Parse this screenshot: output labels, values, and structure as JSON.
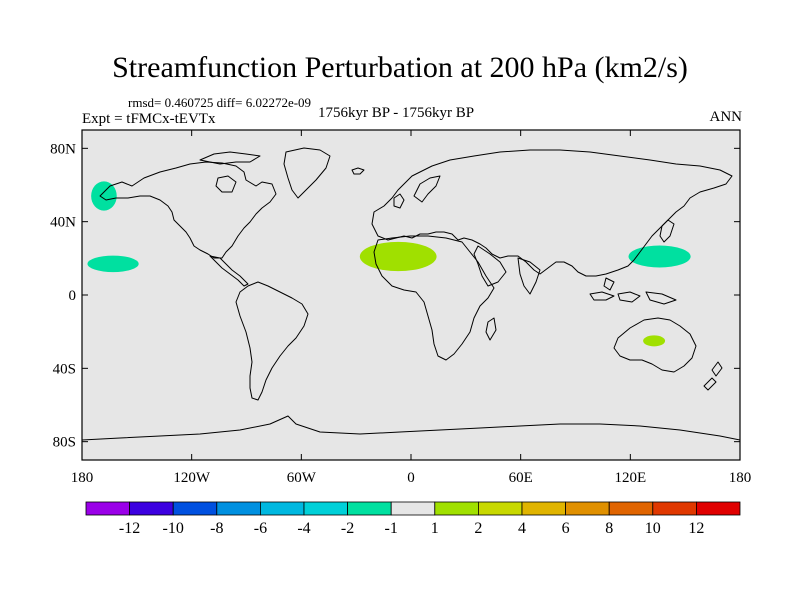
{
  "title": "Streamfunction Perturbation at 200 hPa (km2/s)",
  "stats": "rmsd= 0.460725 diff= 6.02272e-09",
  "experiment": "Expt = tFMCx-tEVTx",
  "period": "1756kyr BP - 1756kyr BP",
  "season": "ANN",
  "colors": {
    "ocean_background": "#e6e6e6",
    "coastline": "#000000",
    "frame": "#000000"
  },
  "map_axes": {
    "lon_range": [
      -180,
      180
    ],
    "lat_range": [
      -90,
      90
    ],
    "x_ticks": [
      {
        "value": -180,
        "label": "180"
      },
      {
        "value": -120,
        "label": "120W"
      },
      {
        "value": -60,
        "label": "60W"
      },
      {
        "value": 0,
        "label": "0"
      },
      {
        "value": 60,
        "label": "60E"
      },
      {
        "value": 120,
        "label": "120E"
      },
      {
        "value": 180,
        "label": "180"
      }
    ],
    "y_ticks": [
      {
        "value": 80,
        "label": "80N"
      },
      {
        "value": 40,
        "label": "40N"
      },
      {
        "value": 0,
        "label": "0"
      },
      {
        "value": -40,
        "label": "40S"
      },
      {
        "value": -80,
        "label": "80S"
      }
    ]
  },
  "chart_data": {
    "type": "heatmap",
    "title": "Streamfunction Perturbation at 200 hPa (km2/s)",
    "units": "km2/s",
    "anomaly_regions": [
      {
        "name": "north-pacific-gulf-of-alaska",
        "lon": -168,
        "lat": 54,
        "lon_radius": 7,
        "lat_radius": 8,
        "value_bin": "-2 to -1",
        "color": "#00e0a0"
      },
      {
        "name": "subtropical-pacific-hawaii",
        "lon": -163,
        "lat": 17,
        "lon_radius": 14,
        "lat_radius": 4.5,
        "value_bin": "-2 to -1",
        "color": "#00e0a0"
      },
      {
        "name": "north-africa-sahara",
        "lon": -7,
        "lat": 21,
        "lon_radius": 21,
        "lat_radius": 8,
        "value_bin": "1 to 2",
        "color": "#a0e000"
      },
      {
        "name": "western-pacific-philippine-sea",
        "lon": 136,
        "lat": 21,
        "lon_radius": 17,
        "lat_radius": 6,
        "value_bin": "-2 to -1",
        "color": "#00e0a0"
      },
      {
        "name": "central-australia",
        "lon": 133,
        "lat": -25,
        "lon_radius": 6,
        "lat_radius": 3,
        "value_bin": "1 to 2",
        "color": "#a0e000"
      }
    ],
    "colorbar": {
      "bins": [
        {
          "color": "#9a00e8"
        },
        {
          "color": "#3c00e0"
        },
        {
          "color": "#0050e0"
        },
        {
          "color": "#0090e0"
        },
        {
          "color": "#00b8e0"
        },
        {
          "color": "#00d0d8"
        },
        {
          "color": "#00e0a0"
        },
        {
          "color": "#e6e6e6"
        },
        {
          "color": "#a0e000"
        },
        {
          "color": "#c8d800"
        },
        {
          "color": "#e0b400"
        },
        {
          "color": "#e09000"
        },
        {
          "color": "#e06400"
        },
        {
          "color": "#e03800"
        },
        {
          "color": "#e00000"
        }
      ],
      "labels": [
        "-12",
        "-10",
        "-8",
        "-6",
        "-4",
        "-2",
        "-1",
        "1",
        "2",
        "4",
        "6",
        "8",
        "10",
        "12"
      ]
    }
  }
}
